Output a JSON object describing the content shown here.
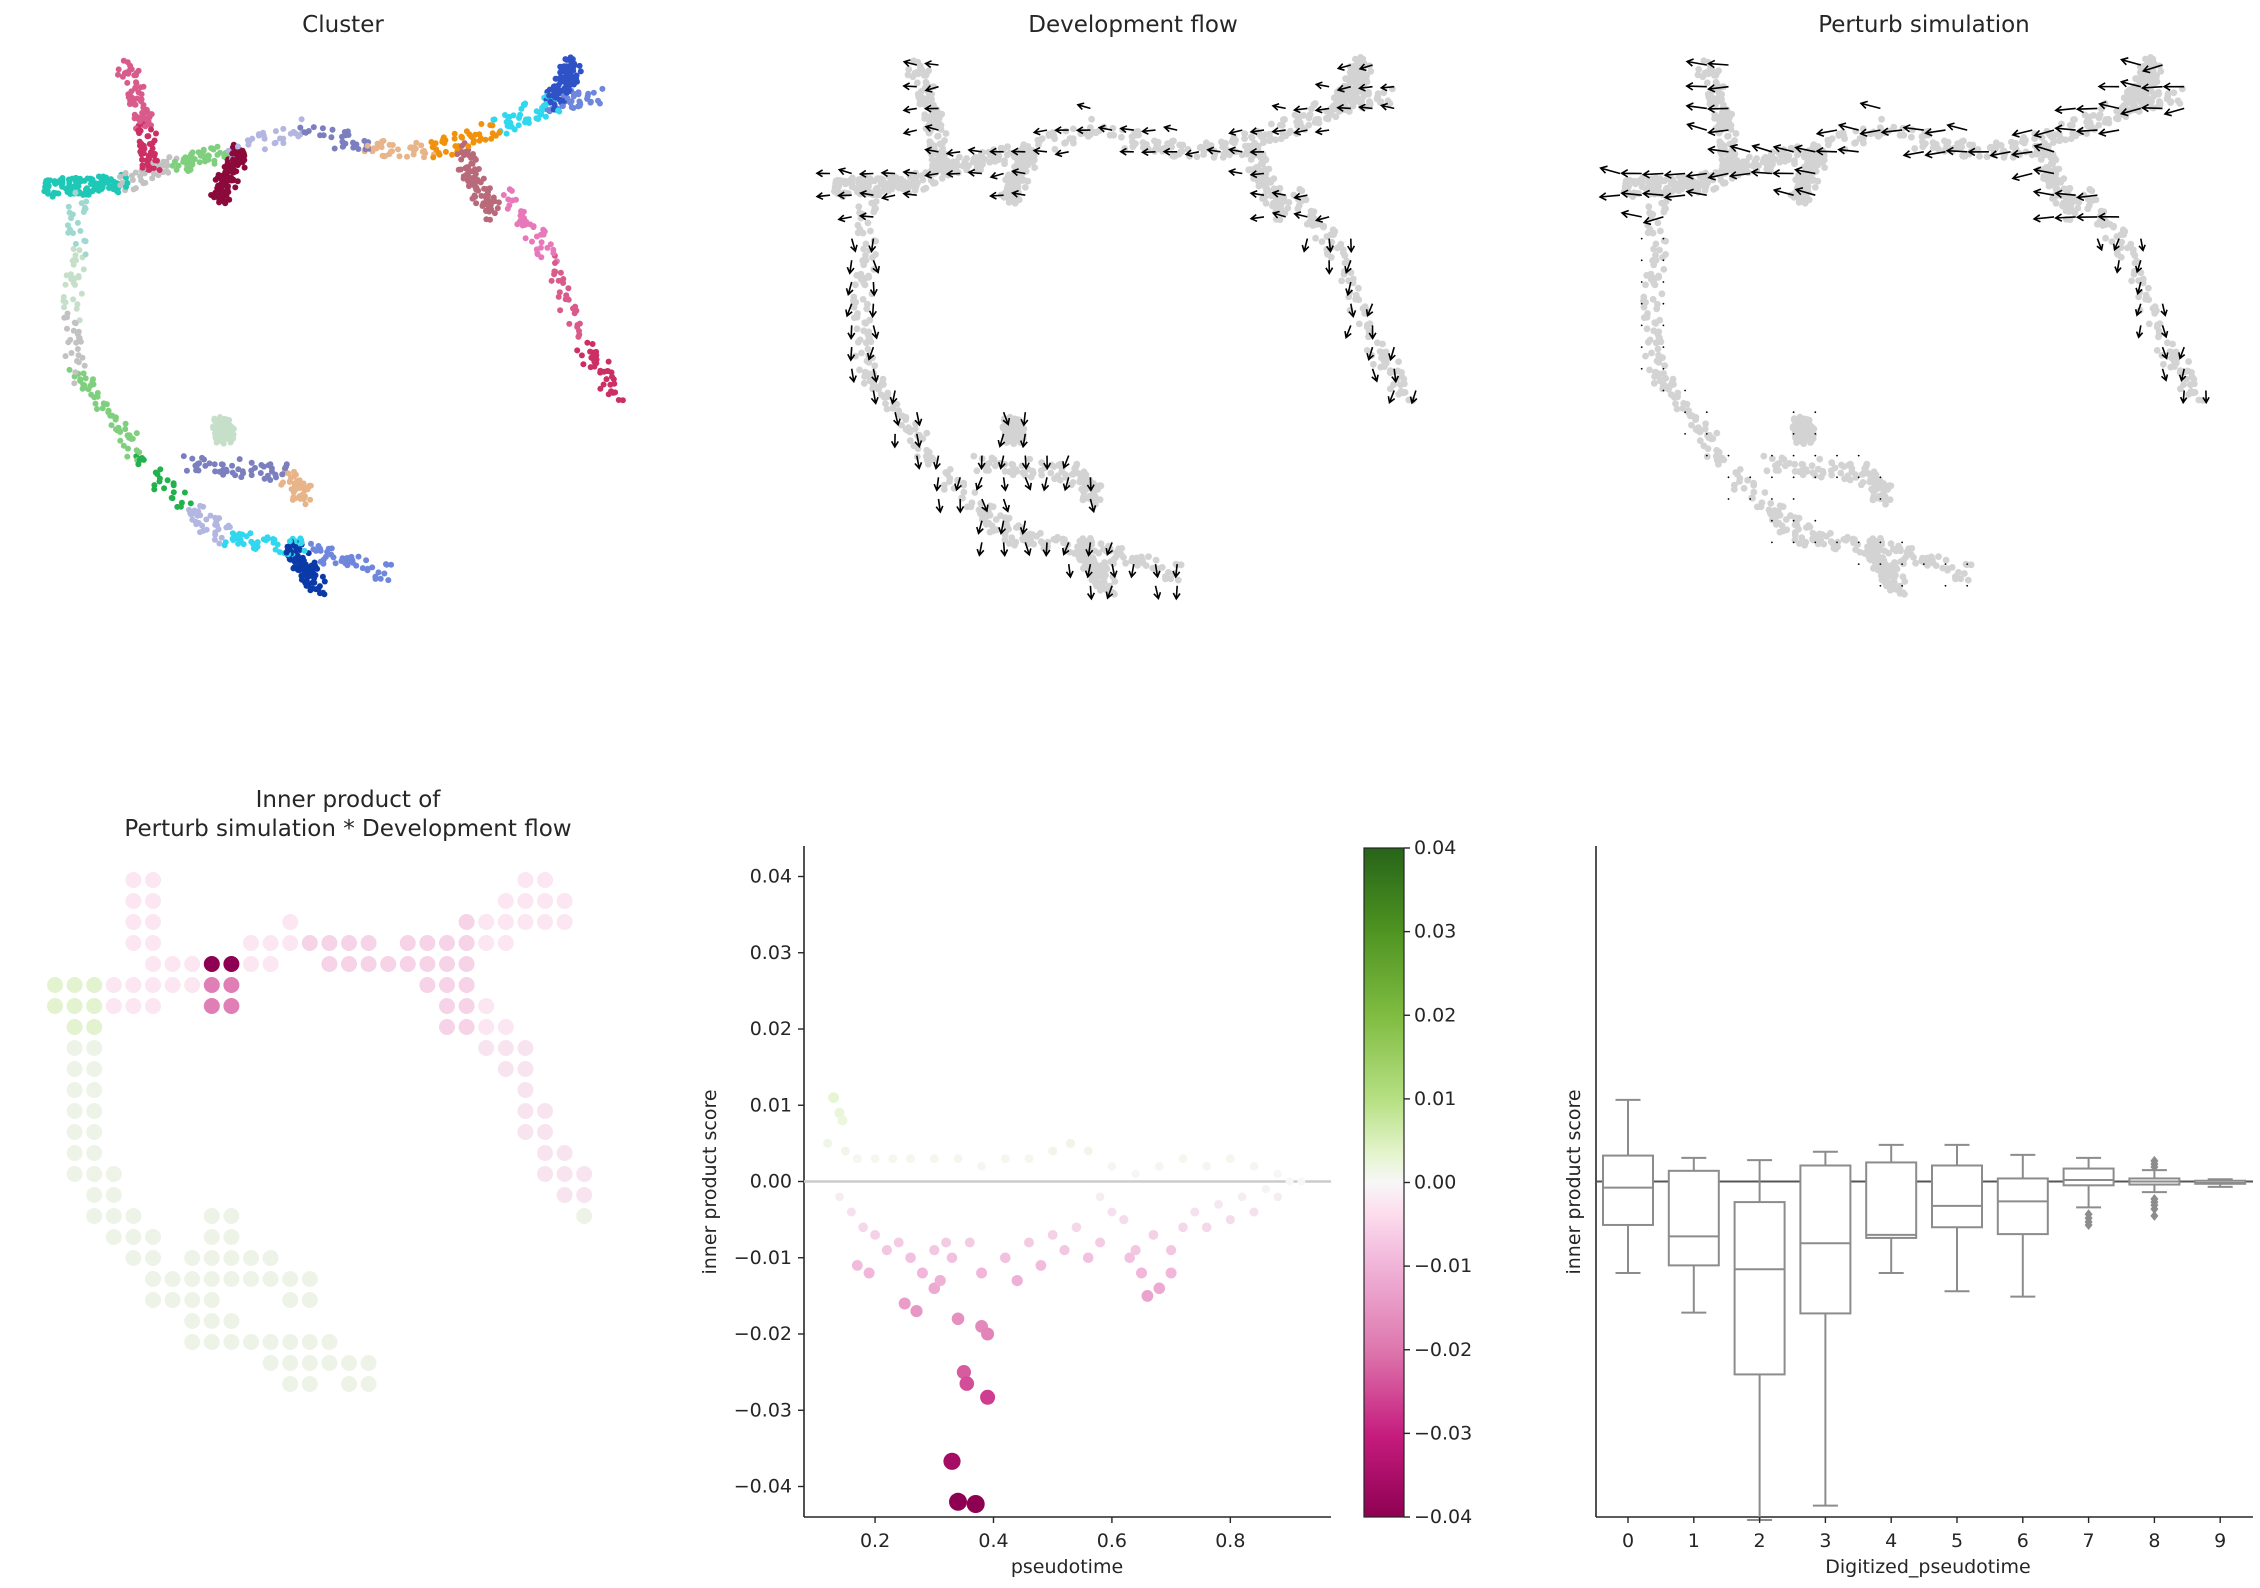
{
  "colors": {
    "grey_cell": "#d3d3d3",
    "arrow": "#000000",
    "box": "#8c8c8c",
    "zero_line": "#cccccc",
    "cmap_pos": "#1e6b1e",
    "cmap_neg": "#8e0152",
    "cluster_palette": [
      "#1fc8b6",
      "#9fd8d0",
      "#c6dfc9",
      "#c2c2c2",
      "#7fcf7f",
      "#22b14c",
      "#b3b6e0",
      "#7b7fbf",
      "#e8b48a",
      "#f0920c",
      "#2fd8ee",
      "#6e86dc",
      "#2f53c6",
      "#0a3aa8",
      "#f1a6d6",
      "#e779bb",
      "#d95b8b",
      "#cc2f63",
      "#b86a7a",
      "#8b0a3b"
    ]
  },
  "panels": {
    "cluster": {
      "title": "Cluster"
    },
    "dev_flow": {
      "title": "Development flow"
    },
    "perturb": {
      "title": "Perturb simulation"
    },
    "inner_map": {
      "title_line1": "Inner product of",
      "title_line2": "Perturb simulation * Development flow"
    }
  },
  "chart_data": [
    {
      "type": "scatter",
      "panel": "scatter-inner-product",
      "xlabel": "pseudotime",
      "ylabel": "inner product score",
      "xticks": [
        "0.2",
        "0.4",
        "0.6",
        "0.8"
      ],
      "yticks": [
        "−0.04",
        "−0.03",
        "−0.02",
        "−0.01",
        "0.00",
        "0.01",
        "0.02",
        "0.03",
        "0.04"
      ],
      "ylim": [
        -0.044,
        0.044
      ],
      "xlim": [
        0.08,
        0.97
      ],
      "colorbar": {
        "vmin": -0.04,
        "vmax": 0.04,
        "ticks": [
          "−0.04",
          "−0.03",
          "−0.02",
          "−0.01",
          "0.00",
          "0.01",
          "0.02",
          "0.03",
          "0.04"
        ],
        "cmap": "PiYG"
      },
      "points": [
        [
          0.13,
          0.011
        ],
        [
          0.14,
          0.009
        ],
        [
          0.145,
          0.008
        ],
        [
          0.12,
          0.005
        ],
        [
          0.15,
          0.004
        ],
        [
          0.17,
          0.003
        ],
        [
          0.2,
          0.003
        ],
        [
          0.23,
          0.003
        ],
        [
          0.26,
          0.003
        ],
        [
          0.3,
          0.003
        ],
        [
          0.34,
          0.003
        ],
        [
          0.38,
          0.002
        ],
        [
          0.42,
          0.003
        ],
        [
          0.46,
          0.003
        ],
        [
          0.5,
          0.004
        ],
        [
          0.53,
          0.005
        ],
        [
          0.56,
          0.004
        ],
        [
          0.6,
          0.002
        ],
        [
          0.64,
          0.001
        ],
        [
          0.68,
          0.002
        ],
        [
          0.72,
          0.003
        ],
        [
          0.76,
          0.002
        ],
        [
          0.8,
          0.003
        ],
        [
          0.84,
          0.002
        ],
        [
          0.88,
          0.001
        ],
        [
          0.92,
          0.0
        ],
        [
          0.14,
          -0.002
        ],
        [
          0.16,
          -0.004
        ],
        [
          0.18,
          -0.006
        ],
        [
          0.2,
          -0.007
        ],
        [
          0.17,
          -0.011
        ],
        [
          0.19,
          -0.012
        ],
        [
          0.22,
          -0.009
        ],
        [
          0.24,
          -0.008
        ],
        [
          0.26,
          -0.01
        ],
        [
          0.28,
          -0.012
        ],
        [
          0.3,
          -0.009
        ],
        [
          0.32,
          -0.008
        ],
        [
          0.25,
          -0.016
        ],
        [
          0.27,
          -0.017
        ],
        [
          0.3,
          -0.014
        ],
        [
          0.31,
          -0.013
        ],
        [
          0.33,
          -0.01
        ],
        [
          0.34,
          -0.018
        ],
        [
          0.36,
          -0.008
        ],
        [
          0.38,
          -0.012
        ],
        [
          0.38,
          -0.019
        ],
        [
          0.39,
          -0.02
        ],
        [
          0.35,
          -0.025
        ],
        [
          0.355,
          -0.0265
        ],
        [
          0.39,
          -0.0283
        ],
        [
          0.33,
          -0.0367
        ],
        [
          0.34,
          -0.042
        ],
        [
          0.37,
          -0.0423
        ],
        [
          0.42,
          -0.01
        ],
        [
          0.44,
          -0.013
        ],
        [
          0.46,
          -0.008
        ],
        [
          0.48,
          -0.011
        ],
        [
          0.5,
          -0.007
        ],
        [
          0.52,
          -0.009
        ],
        [
          0.54,
          -0.006
        ],
        [
          0.56,
          -0.01
        ],
        [
          0.58,
          -0.008
        ],
        [
          0.6,
          -0.004
        ],
        [
          0.62,
          -0.005
        ],
        [
          0.63,
          -0.01
        ],
        [
          0.65,
          -0.012
        ],
        [
          0.66,
          -0.015
        ],
        [
          0.68,
          -0.014
        ],
        [
          0.67,
          -0.007
        ],
        [
          0.7,
          -0.009
        ],
        [
          0.72,
          -0.006
        ],
        [
          0.74,
          -0.004
        ],
        [
          0.76,
          -0.006
        ],
        [
          0.78,
          -0.003
        ],
        [
          0.8,
          -0.005
        ],
        [
          0.82,
          -0.002
        ],
        [
          0.84,
          -0.004
        ],
        [
          0.86,
          -0.001
        ],
        [
          0.88,
          -0.002
        ],
        [
          0.9,
          0.0
        ],
        [
          0.7,
          -0.012
        ],
        [
          0.64,
          -0.009
        ],
        [
          0.58,
          -0.002
        ]
      ]
    },
    {
      "type": "box",
      "panel": "boxplot-digitized",
      "xlabel": "Digitized_pseudotime",
      "ylabel": "inner product score",
      "categories": [
        "0",
        "1",
        "2",
        "3",
        "4",
        "5",
        "6",
        "7",
        "8",
        "9"
      ],
      "ylim": [
        -0.044,
        0.044
      ],
      "boxes": [
        {
          "whislo": -0.012,
          "q1": -0.0057,
          "med": -0.0008,
          "q3": 0.0034,
          "whishi": 0.0107,
          "fliers": []
        },
        {
          "whislo": -0.0172,
          "q1": -0.011,
          "med": -0.0072,
          "q3": 0.0014,
          "whishi": 0.0031,
          "fliers": []
        },
        {
          "whislo": -0.0444,
          "q1": -0.0253,
          "med": -0.0115,
          "q3": -0.0027,
          "whishi": 0.0028,
          "fliers": []
        },
        {
          "whislo": -0.0425,
          "q1": -0.0173,
          "med": -0.0081,
          "q3": 0.0021,
          "whishi": 0.0039,
          "fliers": []
        },
        {
          "whislo": -0.012,
          "q1": -0.0074,
          "med": -0.007,
          "q3": 0.0025,
          "whishi": 0.0048,
          "fliers": []
        },
        {
          "whislo": -0.0144,
          "q1": -0.006,
          "med": -0.0032,
          "q3": 0.0021,
          "whishi": 0.0048,
          "fliers": []
        },
        {
          "whislo": -0.0151,
          "q1": -0.0069,
          "med": -0.0026,
          "q3": 0.0004,
          "whishi": 0.0035,
          "fliers": []
        },
        {
          "whislo": -0.0034,
          "q1": -0.0005,
          "med": 0.0002,
          "q3": 0.0017,
          "whishi": 0.0031,
          "fliers": [
            -0.0043,
            -0.0048,
            -0.0053,
            -0.0057
          ]
        },
        {
          "whislo": -0.0014,
          "q1": -0.0004,
          "med": 0.0,
          "q3": 0.0004,
          "whishi": 0.0015,
          "fliers": [
            0.0027,
            0.0023,
            0.0019,
            -0.0023,
            -0.0027,
            -0.0031,
            -0.0036,
            -0.0045
          ]
        },
        {
          "whislo": -0.0007,
          "q1": -0.0003,
          "med": -0.0002,
          "q3": 0.0001,
          "whishi": 0.0003,
          "fliers": []
        }
      ]
    }
  ]
}
